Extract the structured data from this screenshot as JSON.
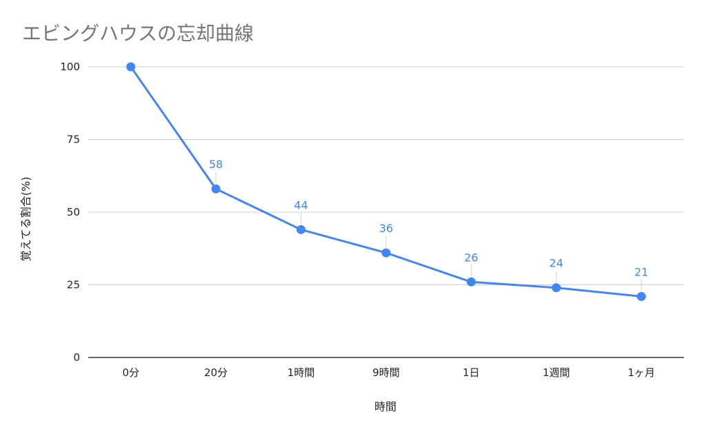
{
  "chart_data": {
    "type": "line",
    "title": "エビングハウスの忘却曲線",
    "xlabel": "時間",
    "ylabel": "覚えてる割合(%)",
    "categories": [
      "0分",
      "20分",
      "1時間",
      "9時間",
      "1日",
      "1週間",
      "1ヶ月"
    ],
    "series": [
      {
        "values": [
          100,
          58,
          44,
          36,
          26,
          24,
          21
        ],
        "color": "#4285f4",
        "data_labels": [
          "",
          "58",
          "44",
          "36",
          "26",
          "24",
          "21"
        ]
      }
    ],
    "ylim": [
      0,
      100
    ],
    "yticks": [
      "0",
      "25",
      "50",
      "75",
      "100"
    ],
    "grid": true,
    "legend": "none"
  }
}
